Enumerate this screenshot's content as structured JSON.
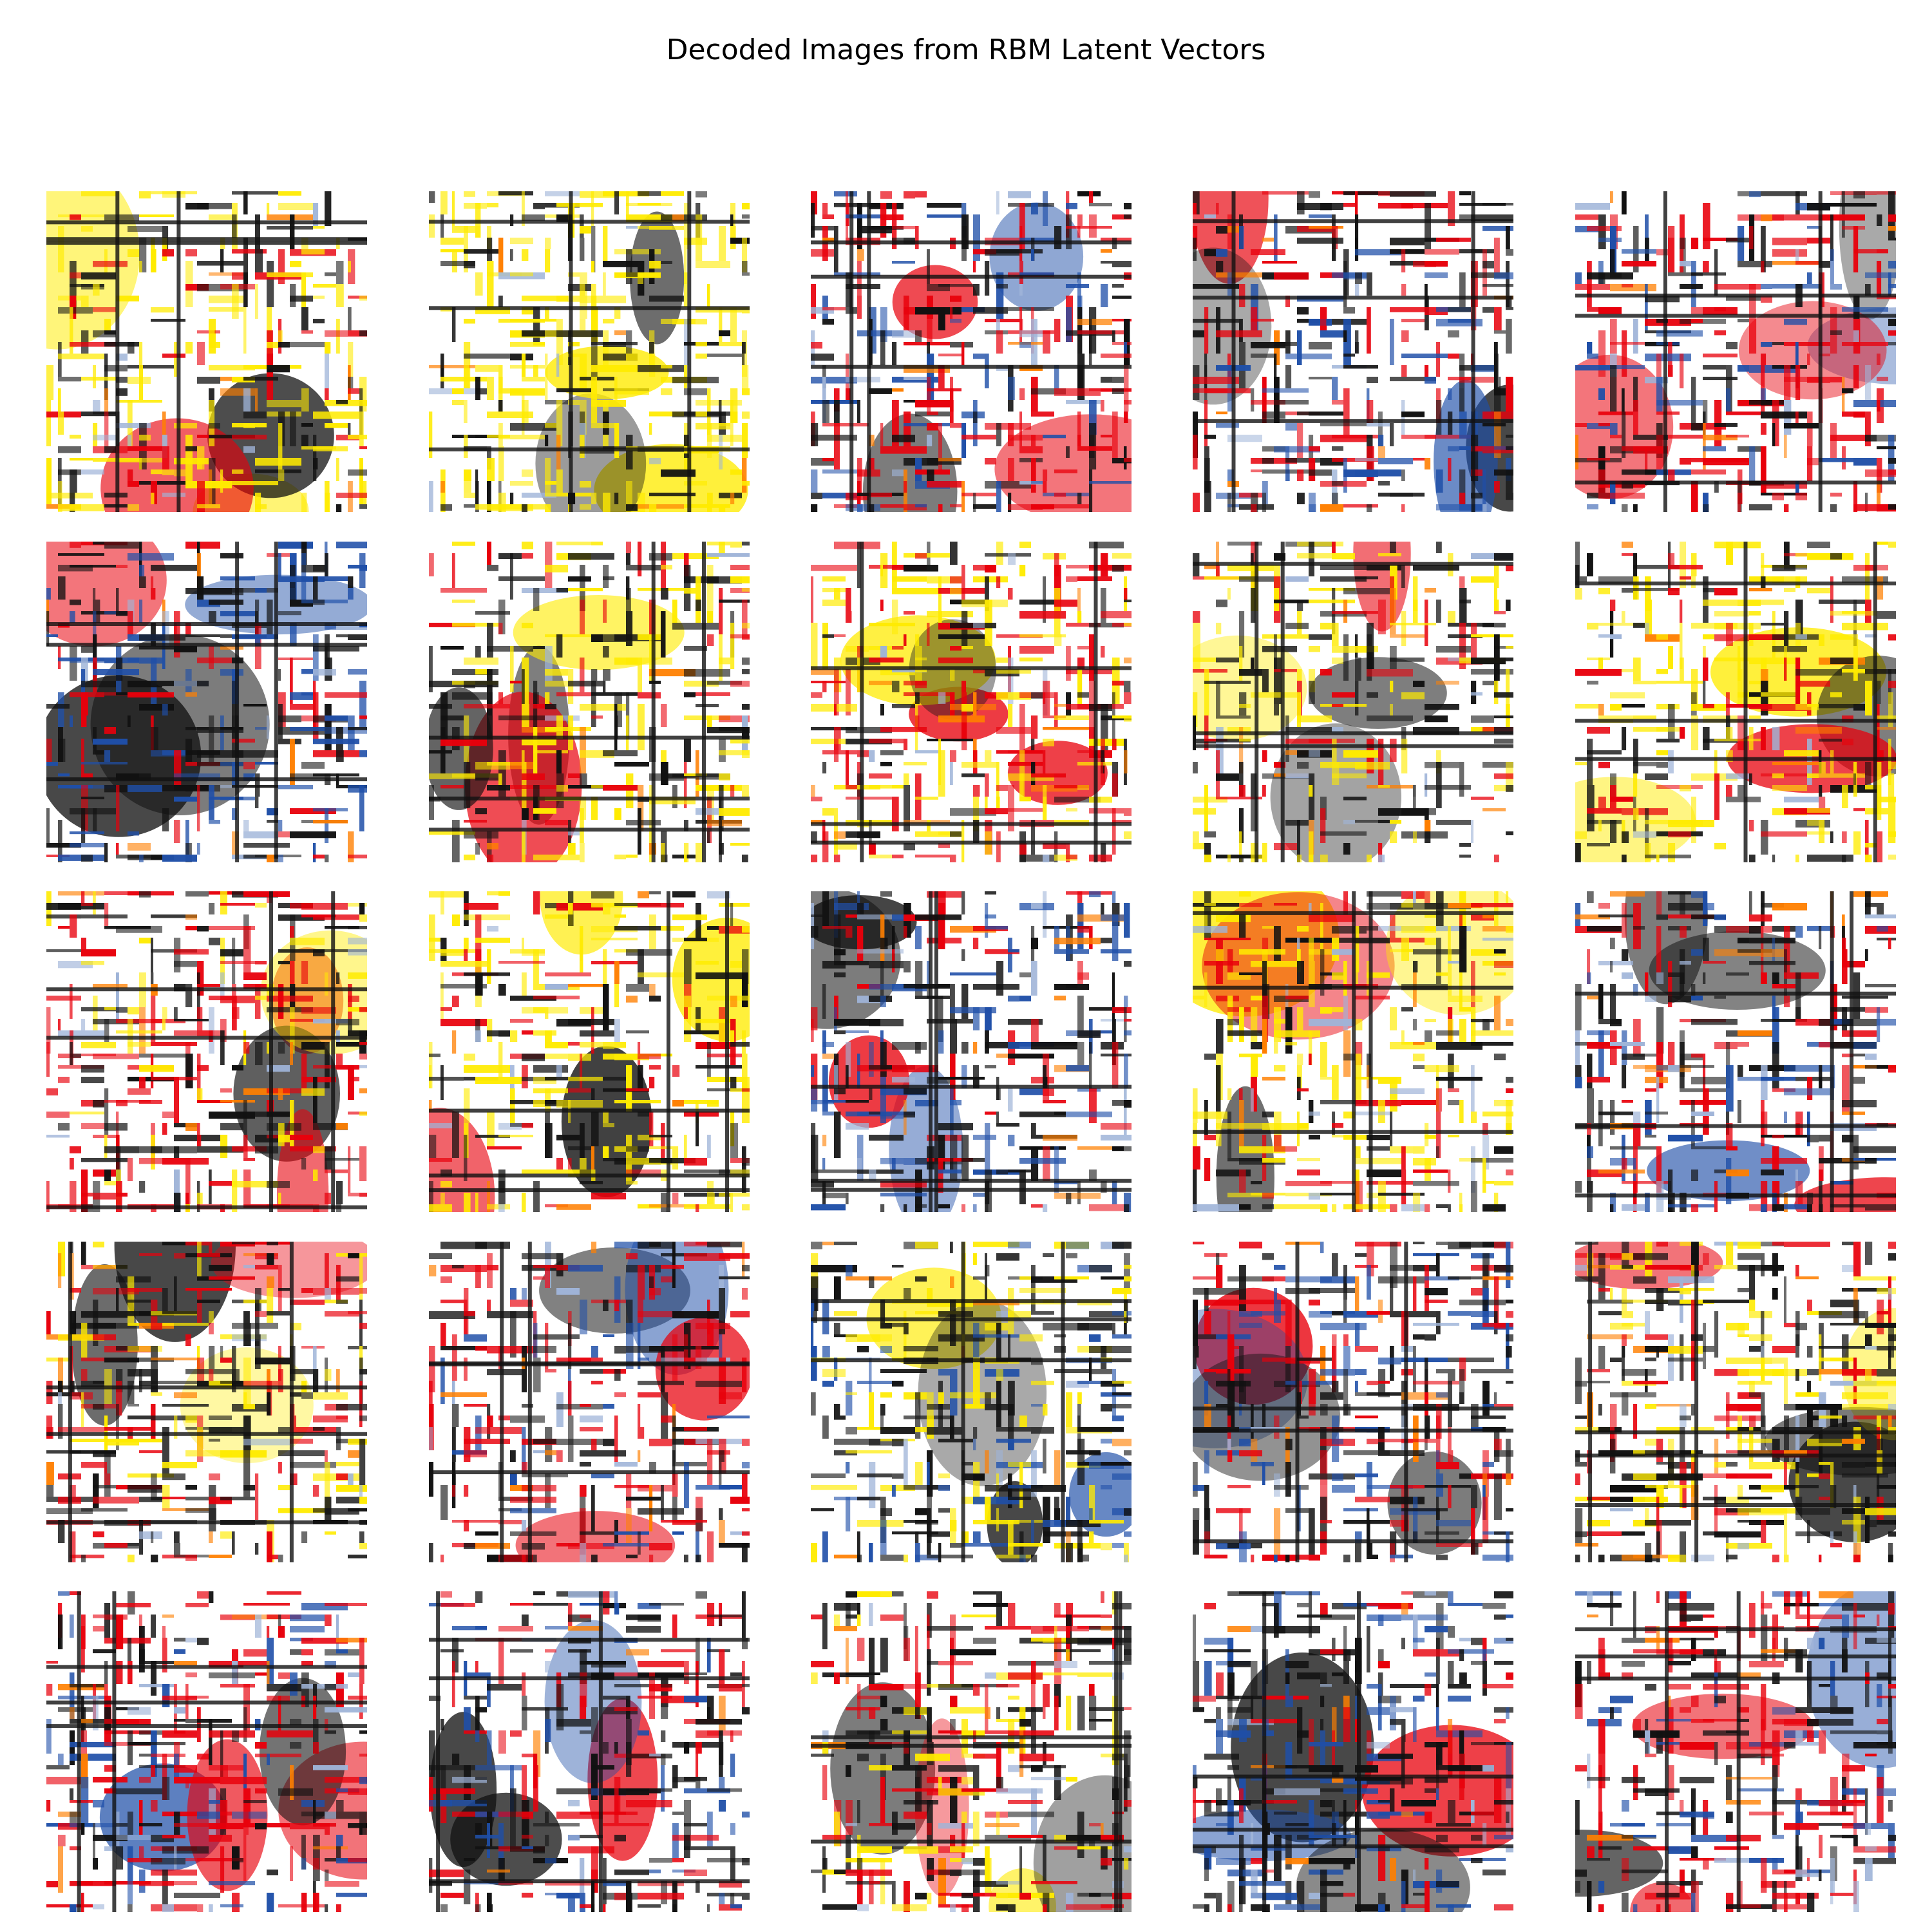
{
  "figure": {
    "title": "Decoded Images from RBM Latent Vectors",
    "rows": 5,
    "columns": 5
  },
  "palette": {
    "background": "#ffffff",
    "red": "#e8000b",
    "yellow": "#ffeb00",
    "black": "#111111",
    "blue": "#1f4fa8",
    "light_blue": "#9fb4d8",
    "orange": "#ff7f00"
  },
  "panels": [
    {
      "id": 1,
      "dominant": [
        "yellow",
        "black",
        "red"
      ]
    },
    {
      "id": 2,
      "dominant": [
        "yellow",
        "black"
      ]
    },
    {
      "id": 3,
      "dominant": [
        "red",
        "black",
        "blue"
      ]
    },
    {
      "id": 4,
      "dominant": [
        "black",
        "red",
        "blue"
      ]
    },
    {
      "id": 5,
      "dominant": [
        "red",
        "black",
        "blue"
      ]
    },
    {
      "id": 6,
      "dominant": [
        "black",
        "blue",
        "red"
      ]
    },
    {
      "id": 7,
      "dominant": [
        "black",
        "yellow",
        "red"
      ]
    },
    {
      "id": 8,
      "dominant": [
        "red",
        "yellow",
        "black"
      ]
    },
    {
      "id": 9,
      "dominant": [
        "black",
        "yellow",
        "red"
      ]
    },
    {
      "id": 10,
      "dominant": [
        "yellow",
        "black",
        "red"
      ]
    },
    {
      "id": 11,
      "dominant": [
        "red",
        "black",
        "yellow"
      ]
    },
    {
      "id": 12,
      "dominant": [
        "yellow",
        "black",
        "red"
      ]
    },
    {
      "id": 13,
      "dominant": [
        "black",
        "blue",
        "red"
      ]
    },
    {
      "id": 14,
      "dominant": [
        "yellow",
        "black",
        "red"
      ]
    },
    {
      "id": 15,
      "dominant": [
        "black",
        "red",
        "blue"
      ]
    },
    {
      "id": 16,
      "dominant": [
        "black",
        "red",
        "yellow"
      ]
    },
    {
      "id": 17,
      "dominant": [
        "red",
        "black",
        "blue"
      ]
    },
    {
      "id": 18,
      "dominant": [
        "black",
        "yellow",
        "blue"
      ]
    },
    {
      "id": 19,
      "dominant": [
        "black",
        "red",
        "blue"
      ]
    },
    {
      "id": 20,
      "dominant": [
        "black",
        "yellow",
        "red"
      ]
    },
    {
      "id": 21,
      "dominant": [
        "red",
        "black",
        "blue"
      ]
    },
    {
      "id": 22,
      "dominant": [
        "black",
        "red",
        "blue"
      ]
    },
    {
      "id": 23,
      "dominant": [
        "black",
        "red",
        "yellow"
      ]
    },
    {
      "id": 24,
      "dominant": [
        "black",
        "blue",
        "red"
      ]
    },
    {
      "id": 25,
      "dominant": [
        "red",
        "black",
        "blue"
      ]
    }
  ]
}
